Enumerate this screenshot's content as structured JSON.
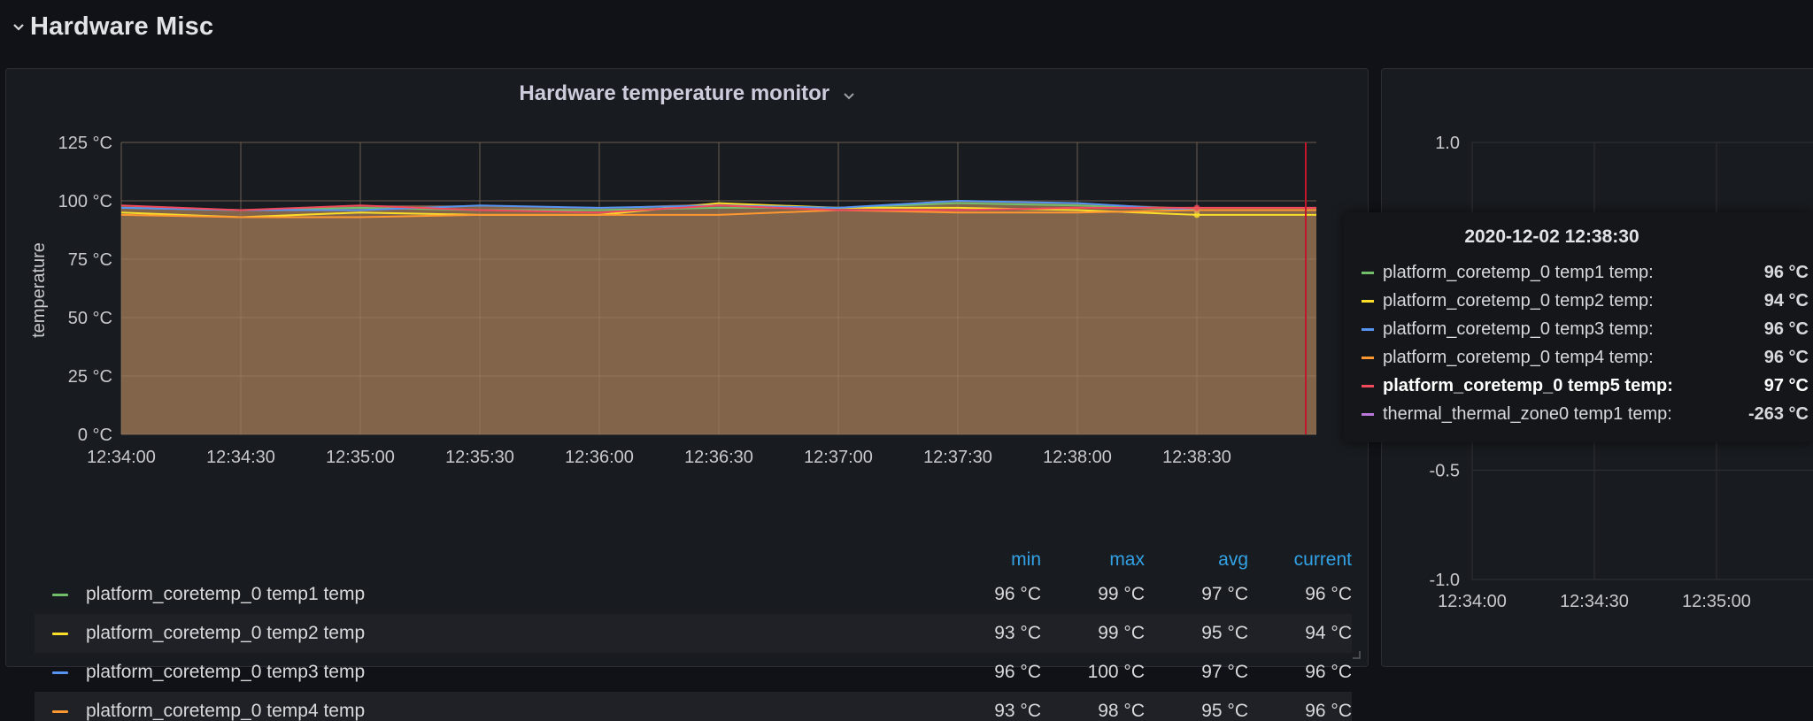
{
  "row": {
    "title": "Hardware Misc"
  },
  "panel_left": {
    "title": "Hardware temperature monitor",
    "legend": {
      "headers": [
        "min",
        "max",
        "avg",
        "current"
      ],
      "rows": [
        {
          "name": "platform_coretemp_0 temp1 temp",
          "color": "#73bf69",
          "min": "96 °C",
          "max": "99 °C",
          "avg": "97 °C",
          "current": "96 °C"
        },
        {
          "name": "platform_coretemp_0 temp2 temp",
          "color": "#fade2a",
          "min": "93 °C",
          "max": "99 °C",
          "avg": "95 °C",
          "current": "94 °C"
        },
        {
          "name": "platform_coretemp_0 temp3 temp",
          "color": "#5794f2",
          "min": "96 °C",
          "max": "100 °C",
          "avg": "97 °C",
          "current": "96 °C"
        },
        {
          "name": "platform_coretemp_0 temp4 temp",
          "color": "#ff9830",
          "min": "93 °C",
          "max": "98 °C",
          "avg": "95 °C",
          "current": "96 °C"
        }
      ]
    }
  },
  "chart_data": [
    {
      "type": "line",
      "title": "Hardware temperature monitor",
      "xlabel": "",
      "ylabel": "temperature",
      "ylim": [
        0,
        125
      ],
      "y_ticks": [
        "125 °C",
        "100 °C",
        "75 °C",
        "50 °C",
        "25 °C",
        "0 °C"
      ],
      "x": [
        "12:34:00",
        "12:34:30",
        "12:35:00",
        "12:35:30",
        "12:36:00",
        "12:36:30",
        "12:37:00",
        "12:37:30",
        "12:38:00",
        "12:38:30",
        "12:39:00"
      ],
      "x_ticks": [
        "12:34:00",
        "12:34:30",
        "12:35:00",
        "12:35:30",
        "12:36:00",
        "12:36:30",
        "12:37:00",
        "12:37:30",
        "12:38:00",
        "12:38:30"
      ],
      "grid": true,
      "area_fill": "#8c6a4f",
      "series": [
        {
          "name": "platform_coretemp_0 temp1 temp",
          "color": "#73bf69",
          "values": [
            97,
            96,
            97,
            96,
            96,
            97,
            97,
            99,
            98,
            96,
            96
          ]
        },
        {
          "name": "platform_coretemp_0 temp2 temp",
          "color": "#fade2a",
          "values": [
            95,
            93,
            95,
            94,
            94,
            99,
            97,
            97,
            96,
            94,
            94
          ]
        },
        {
          "name": "platform_coretemp_0 temp3 temp",
          "color": "#5794f2",
          "values": [
            97,
            96,
            96,
            98,
            97,
            98,
            97,
            100,
            99,
            96,
            96
          ]
        },
        {
          "name": "platform_coretemp_0 temp4 temp",
          "color": "#ff9830",
          "values": [
            94,
            93,
            93,
            94,
            94,
            94,
            96,
            95,
            95,
            96,
            96
          ]
        },
        {
          "name": "platform_coretemp_0 temp5 temp",
          "color": "#f2495c",
          "values": [
            98,
            96,
            98,
            96,
            95,
            98,
            96,
            96,
            97,
            97,
            97
          ]
        }
      ],
      "crosshair_x": "12:38:30"
    },
    {
      "type": "line",
      "title": "",
      "ylim": [
        -1.0,
        1.0
      ],
      "y_ticks": [
        "1.0",
        "-0.5",
        "-1.0"
      ],
      "x_ticks": [
        "12:34:00",
        "12:34:30",
        "12:35:00"
      ],
      "grid": true,
      "series": []
    }
  ],
  "tooltip": {
    "time": "2020-12-02 12:38:30",
    "rows": [
      {
        "name": "platform_coretemp_0 temp1 temp:",
        "value": "96 °C",
        "color": "#73bf69",
        "bold": false
      },
      {
        "name": "platform_coretemp_0 temp2 temp:",
        "value": "94 °C",
        "color": "#fade2a",
        "bold": false
      },
      {
        "name": "platform_coretemp_0 temp3 temp:",
        "value": "96 °C",
        "color": "#5794f2",
        "bold": false
      },
      {
        "name": "platform_coretemp_0 temp4 temp:",
        "value": "96 °C",
        "color": "#ff9830",
        "bold": false
      },
      {
        "name": "platform_coretemp_0 temp5 temp:",
        "value": "97 °C",
        "color": "#f2495c",
        "bold": true
      },
      {
        "name": "thermal_thermal_zone0 temp1 temp:",
        "value": "-263 °C",
        "color": "#b877d9",
        "bold": false
      }
    ]
  }
}
